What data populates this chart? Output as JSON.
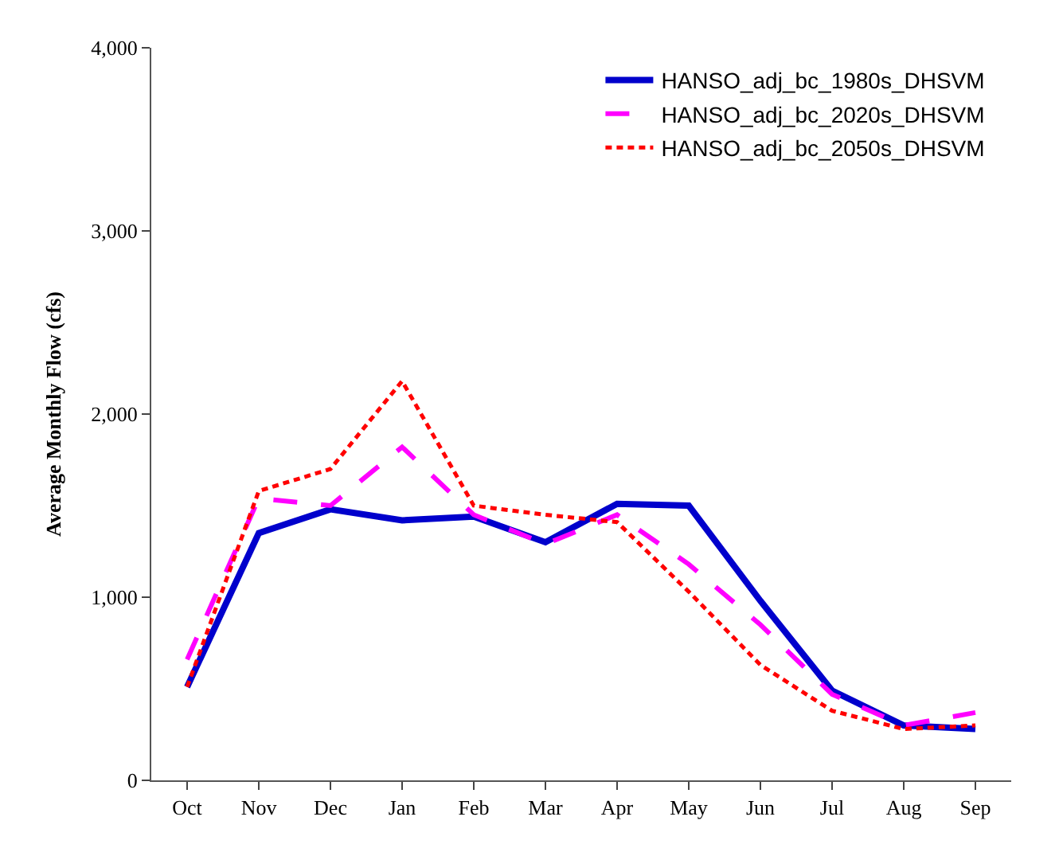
{
  "chart_data": {
    "type": "line",
    "ylabel": "Average Monthly Flow (cfs)",
    "categories": [
      "Oct",
      "Nov",
      "Dec",
      "Jan",
      "Feb",
      "Mar",
      "Apr",
      "May",
      "Jun",
      "Jul",
      "Aug",
      "Sep"
    ],
    "ylim": [
      0,
      4000
    ],
    "yticks": [
      0,
      {
        "value": 1000,
        "label": "1,000"
      },
      {
        "value": 2000,
        "label": "2,000"
      },
      {
        "value": 3000,
        "label": "3,000"
      },
      {
        "value": 4000,
        "label": "4,000"
      }
    ],
    "legend": "top right",
    "marker": "none",
    "series": [
      {
        "name": "HANSO_adj_bc_1980s_DHSVM",
        "color": "#0000cc",
        "line_style": "solid",
        "values": [
          510,
          1350,
          1480,
          1420,
          1440,
          1300,
          1510,
          1500,
          980,
          490,
          300,
          280
        ]
      },
      {
        "name": "HANSO_adj_bc_2020s_DHSVM",
        "color": "#ff00ff",
        "line_style": "dashed",
        "values": [
          660,
          1540,
          1500,
          1820,
          1450,
          1290,
          1450,
          1180,
          850,
          470,
          300,
          370
        ]
      },
      {
        "name": "HANSO_adj_bc_2050s_DHSVM",
        "color": "#ff0000",
        "line_style": "dotted",
        "values": [
          510,
          1580,
          1700,
          2180,
          1500,
          1450,
          1410,
          1030,
          630,
          380,
          280,
          300
        ]
      }
    ]
  }
}
